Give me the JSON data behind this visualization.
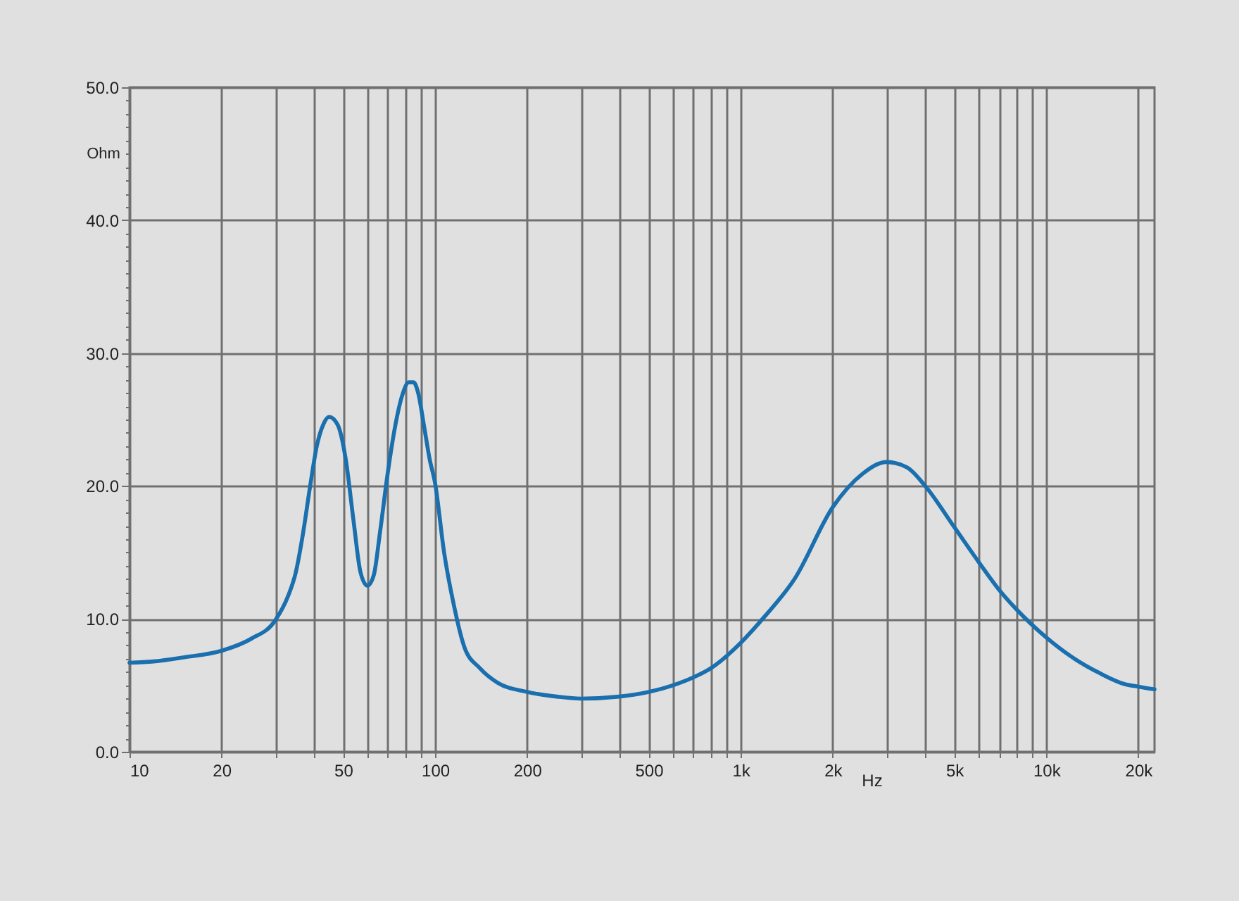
{
  "chart_data": {
    "type": "line",
    "xlabel": "Hz",
    "ylabel": "Ohm",
    "log": "x",
    "grid": true,
    "marker": "none",
    "line_style": "solid",
    "xlim": [
      10,
      22600
    ],
    "ylim": [
      0,
      50
    ],
    "xticks": [
      10,
      20,
      {
        "value": 30,
        "label": null
      },
      {
        "value": 40,
        "label": null
      },
      50,
      {
        "value": 60,
        "label": null
      },
      {
        "value": 70,
        "label": null
      },
      {
        "value": 80,
        "label": null
      },
      {
        "value": 90,
        "label": null
      },
      100,
      200,
      {
        "value": 300,
        "label": null
      },
      {
        "value": 400,
        "label": null
      },
      500,
      {
        "value": 600,
        "label": null
      },
      {
        "value": 700,
        "label": null
      },
      {
        "value": 800,
        "label": null
      },
      {
        "value": 900,
        "label": null
      },
      {
        "value": 1000,
        "label": "1k"
      },
      {
        "value": 2000,
        "label": "2k"
      },
      {
        "value": 3000,
        "label": null
      },
      {
        "value": 4000,
        "label": null
      },
      {
        "value": 5000,
        "label": "5k"
      },
      {
        "value": 6000,
        "label": null
      },
      {
        "value": 7000,
        "label": null
      },
      {
        "value": 8000,
        "label": null
      },
      {
        "value": 9000,
        "label": null
      },
      {
        "value": 10000,
        "label": "10k"
      },
      {
        "value": 20000,
        "label": "20k"
      }
    ],
    "yticks": [
      {
        "value": 0,
        "label": "0.0"
      },
      {
        "value": 1,
        "label": null
      },
      {
        "value": 2,
        "label": null
      },
      {
        "value": 3,
        "label": null
      },
      {
        "value": 4,
        "label": null
      },
      {
        "value": 5,
        "label": null
      },
      {
        "value": 6,
        "label": null
      },
      {
        "value": 7,
        "label": null
      },
      {
        "value": 8,
        "label": null
      },
      {
        "value": 9,
        "label": null
      },
      {
        "value": 10,
        "label": "10.0"
      },
      {
        "value": 11,
        "label": null
      },
      {
        "value": 12,
        "label": null
      },
      {
        "value": 13,
        "label": null
      },
      {
        "value": 14,
        "label": null
      },
      {
        "value": 15,
        "label": null
      },
      {
        "value": 16,
        "label": null
      },
      {
        "value": 17,
        "label": null
      },
      {
        "value": 18,
        "label": null
      },
      {
        "value": 19,
        "label": null
      },
      {
        "value": 20,
        "label": "20.0"
      },
      {
        "value": 21,
        "label": null
      },
      {
        "value": 22,
        "label": null
      },
      {
        "value": 23,
        "label": null
      },
      {
        "value": 24,
        "label": null
      },
      {
        "value": 25,
        "label": null
      },
      {
        "value": 26,
        "label": null
      },
      {
        "value": 27,
        "label": null
      },
      {
        "value": 28,
        "label": null
      },
      {
        "value": 29,
        "label": null
      },
      {
        "value": 30,
        "label": "30.0"
      },
      {
        "value": 31,
        "label": null
      },
      {
        "value": 32,
        "label": null
      },
      {
        "value": 33,
        "label": null
      },
      {
        "value": 34,
        "label": null
      },
      {
        "value": 35,
        "label": null
      },
      {
        "value": 36,
        "label": null
      },
      {
        "value": 37,
        "label": null
      },
      {
        "value": 38,
        "label": null
      },
      {
        "value": 39,
        "label": null
      },
      {
        "value": 40,
        "label": "40.0"
      },
      {
        "value": 41,
        "label": null
      },
      {
        "value": 42,
        "label": null
      },
      {
        "value": 43,
        "label": null
      },
      {
        "value": 44,
        "label": null
      },
      {
        "value": 45,
        "label": null
      },
      {
        "value": 46,
        "label": null
      },
      {
        "value": 47,
        "label": null
      },
      {
        "value": 48,
        "label": null
      },
      {
        "value": 49,
        "label": null
      },
      {
        "value": 50,
        "label": "50.0"
      }
    ],
    "x": [
      10,
      12,
      15,
      20,
      25,
      30,
      33,
      35,
      37,
      39,
      41,
      43,
      45,
      48,
      51,
      54,
      57,
      60,
      63,
      66,
      70,
      74,
      78,
      82,
      85,
      88,
      92,
      96,
      100,
      107,
      115,
      125,
      140,
      160,
      200,
      250,
      300,
      400,
      500,
      600,
      700,
      800,
      1000,
      1200,
      1500,
      2000,
      2500,
      3000,
      3500,
      4000,
      5000,
      6000,
      7000,
      8000,
      10000,
      12000,
      15000,
      18000,
      20000,
      22600
    ],
    "series": [
      {
        "color": "#1a6fae",
        "values": [
          6.7,
          6.8,
          7.1,
          7.6,
          8.5,
          9.9,
          11.7,
          13.5,
          16.5,
          20,
          23,
          24.6,
          25.2,
          24.6,
          22,
          17.5,
          13.5,
          12.5,
          13.3,
          16.5,
          21,
          24.5,
          26.8,
          27.8,
          27.8,
          27,
          24.5,
          22,
          20.2,
          15,
          11.1,
          7.8,
          6.3,
          5.2,
          4.5,
          4.15,
          4.0,
          4.15,
          4.5,
          5.0,
          5.6,
          6.3,
          8.2,
          10.2,
          13,
          18.4,
          20.9,
          21.8,
          21.4,
          20.05,
          16.9,
          14.3,
          12.2,
          10.7,
          8.6,
          7.2,
          5.9,
          5.1,
          4.9,
          4.7
        ]
      }
    ]
  }
}
